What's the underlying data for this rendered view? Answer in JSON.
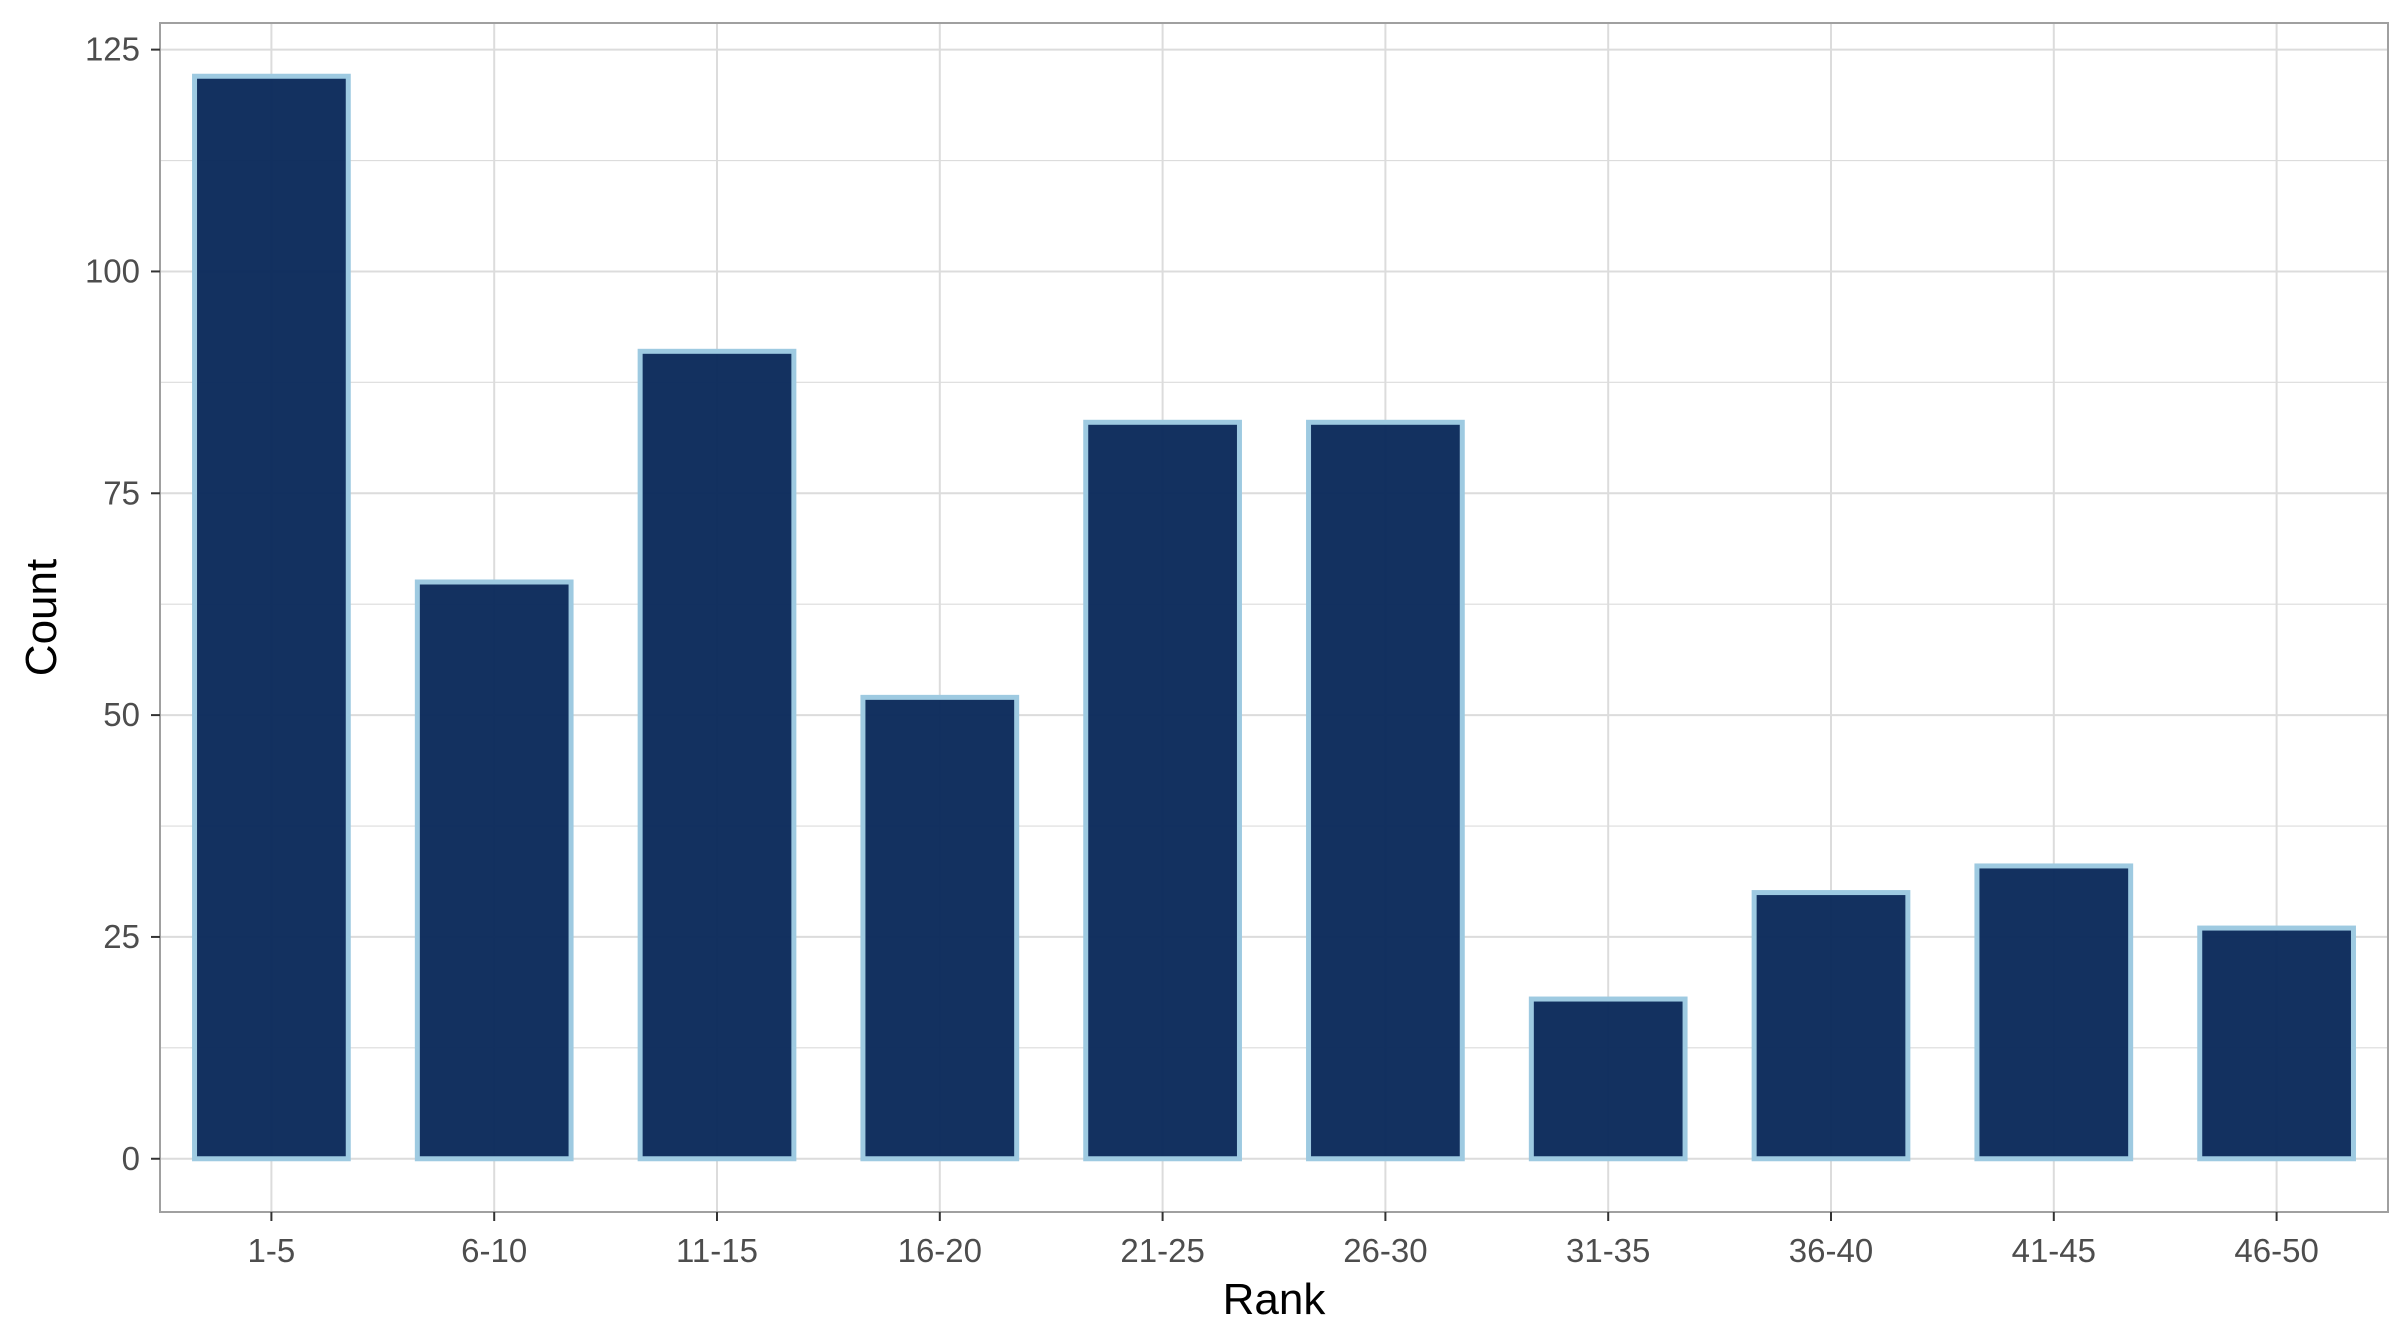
{
  "chart_data": {
    "type": "bar",
    "categories": [
      "1-5",
      "6-10",
      "11-15",
      "16-20",
      "21-25",
      "26-30",
      "31-35",
      "36-40",
      "41-45",
      "46-50"
    ],
    "values": [
      122,
      65,
      91,
      52,
      83,
      83,
      18,
      30,
      33,
      26
    ],
    "title": "",
    "xlabel": "Rank",
    "ylabel": "Count",
    "ylim": [
      -6,
      128
    ],
    "yticks": [
      0,
      25,
      50,
      75,
      100,
      125
    ],
    "grid": true,
    "legend": "none",
    "colors": {
      "bar_fill": "#0b2a5b",
      "bar_outline": "#9ecae1",
      "grid": "#dcdcdc",
      "panel_border": "#a0a0a0"
    }
  }
}
